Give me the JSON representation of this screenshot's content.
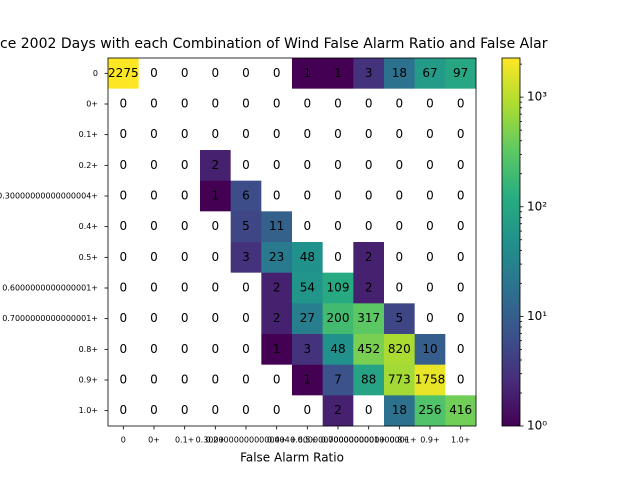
{
  "chart_data": {
    "type": "heatmap",
    "title": "ce 2002 Days with each Combination of Wind False Alarm Ratio and False Alar",
    "x_label": "False Alarm Ratio",
    "x_categories": [
      "0",
      "0+",
      "0.1+",
      "0.2+",
      "0.30000000000000004+",
      "0.4+",
      "0.5+",
      "0.6000000000000001+",
      "0.7000000000000001+",
      "0.8+",
      "0.9+",
      "1.0+"
    ],
    "y_categories": [
      "0",
      "0+",
      "0.1+",
      "0.2+",
      "0.30000000000000004+",
      "0.4+",
      "0.5+",
      "0.6000000000000001+",
      "0.7000000000000001+",
      "0.8+",
      "0.9+",
      "1.0+"
    ],
    "values": [
      [
        2275,
        0,
        0,
        0,
        0,
        0,
        1,
        1,
        3,
        18,
        67,
        97
      ],
      [
        0,
        0,
        0,
        0,
        0,
        0,
        0,
        0,
        0,
        0,
        0,
        0
      ],
      [
        0,
        0,
        0,
        0,
        0,
        0,
        0,
        0,
        0,
        0,
        0,
        0
      ],
      [
        0,
        0,
        0,
        2,
        0,
        0,
        0,
        0,
        0,
        0,
        0,
        0
      ],
      [
        0,
        0,
        0,
        1,
        6,
        0,
        0,
        0,
        0,
        0,
        0,
        0
      ],
      [
        0,
        0,
        0,
        0,
        5,
        11,
        0,
        0,
        0,
        0,
        0,
        0
      ],
      [
        0,
        0,
        0,
        0,
        3,
        23,
        48,
        0,
        2,
        0,
        0,
        0
      ],
      [
        0,
        0,
        0,
        0,
        0,
        2,
        54,
        109,
        2,
        0,
        0,
        0
      ],
      [
        0,
        0,
        0,
        0,
        0,
        2,
        27,
        200,
        317,
        5,
        0,
        0
      ],
      [
        0,
        0,
        0,
        0,
        0,
        1,
        3,
        48,
        452,
        820,
        10,
        0
      ],
      [
        0,
        0,
        0,
        0,
        0,
        0,
        1,
        7,
        88,
        773,
        1758,
        0
      ],
      [
        0,
        0,
        0,
        0,
        0,
        0,
        0,
        2,
        0,
        18,
        256,
        416
      ]
    ],
    "colormap": "viridis",
    "color_scale": "log",
    "clim": [
      1,
      2275
    ],
    "cticks": [
      {
        "value": 1,
        "label": "10⁰"
      },
      {
        "value": 10,
        "label": "10¹"
      },
      {
        "value": 100,
        "label": "10²"
      },
      {
        "value": 1000,
        "label": "10³"
      }
    ],
    "cticks_minor": [
      2,
      3,
      4,
      5,
      6,
      7,
      8,
      9,
      20,
      30,
      40,
      50,
      60,
      70,
      80,
      90,
      200,
      300,
      400,
      500,
      600,
      700,
      800,
      900,
      2000
    ]
  }
}
